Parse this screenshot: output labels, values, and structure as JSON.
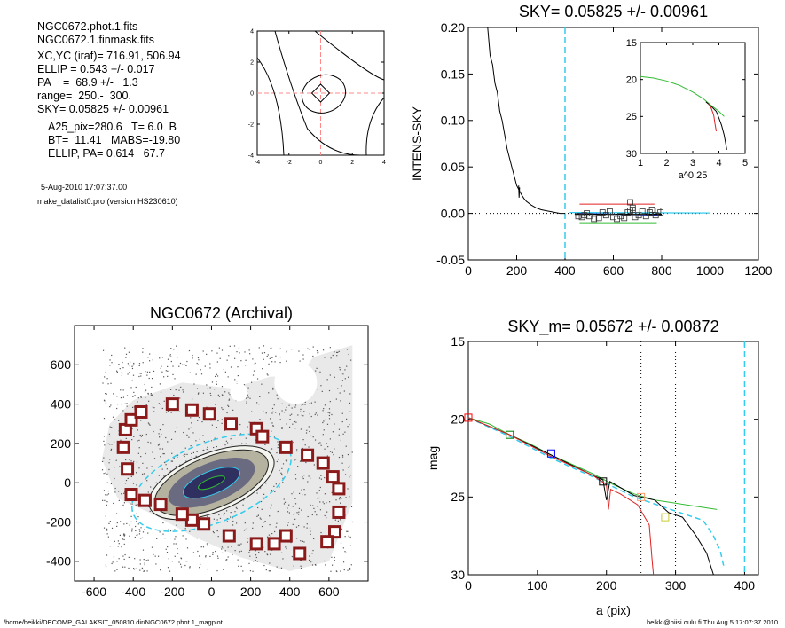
{
  "info": {
    "file1": "NGC0672.phot.1.fits",
    "file2": "NGC0672.1.finmask.fits",
    "xcyc": "XC,YC (iraf)=   716.91, 506.94",
    "ellip": "ELLIP = 0.543 +/- 0.017",
    "pa": "PA    =  68.9 +/-   1.3",
    "range": "range=  250.-  300.",
    "sky": "SKY= 0.05825 +/- 0.00961",
    "a25": "A25_pix=280.6   T= 6.0  B",
    "bt": "BT=  11.41   MABS=-19.80",
    "ellip_pa": "ELLIP, PA= 0.614   67.7",
    "date": "5-Aug-2010 17:07:37.00",
    "program": "make_datalist0.pro (version HS230610)"
  },
  "footer": {
    "path": "/home/heikki/DECOMP_GALAKSIT_050810.dir/NGC0672.phot.1_magplot",
    "user": "heikki@hiisi.oulu.fi  Thu Aug  5 17:07:37 2010"
  },
  "colors": {
    "cyan": "#33ccee",
    "red": "#e02020",
    "green": "#33bb33",
    "blue": "#2233cc",
    "box": "#8b1a1a",
    "pink": "#ff8888"
  },
  "chart_data": [
    {
      "id": "contour",
      "type": "contour",
      "xlim": [
        -4,
        4
      ],
      "ylim": [
        -4,
        4
      ],
      "xticks": [
        "-4",
        "-2",
        "0",
        "2",
        "4"
      ],
      "yticks": [
        "-4",
        "-2",
        "0",
        "2",
        "4"
      ]
    },
    {
      "id": "sky",
      "type": "line",
      "title": "SKY= 0.05825 +/- 0.00961",
      "ylabel": "INTENS-SKY",
      "xlim": [
        0,
        1200
      ],
      "ylim": [
        -0.05,
        0.2
      ],
      "xticks": [
        "0",
        "200",
        "400",
        "600",
        "800",
        "1000",
        "1200"
      ],
      "yticks": [
        "-0.05",
        "0.00",
        "0.05",
        "0.10",
        "0.15",
        "0.20"
      ],
      "vline_x": 400,
      "profile": [
        [
          50,
          0.2
        ],
        [
          80,
          0.2
        ],
        [
          90,
          0.17
        ],
        [
          100,
          0.16
        ],
        [
          110,
          0.14
        ],
        [
          120,
          0.13
        ],
        [
          130,
          0.11
        ],
        [
          140,
          0.1
        ],
        [
          150,
          0.085
        ],
        [
          160,
          0.07
        ],
        [
          170,
          0.06
        ],
        [
          180,
          0.05
        ],
        [
          190,
          0.04
        ],
        [
          200,
          0.03
        ],
        [
          210,
          0.025
        ],
        [
          220,
          0.02
        ],
        [
          230,
          0.016
        ],
        [
          240,
          0.013
        ],
        [
          260,
          0.009
        ],
        [
          280,
          0.006
        ],
        [
          300,
          0.004
        ],
        [
          320,
          0.003
        ],
        [
          340,
          0.002
        ],
        [
          360,
          0.001
        ],
        [
          380,
          0
        ],
        [
          400,
          0
        ]
      ],
      "spike": [
        [
          208,
          0.03
        ],
        [
          210,
          0.017
        ],
        [
          212,
          0.028
        ]
      ],
      "sky_points": [
        [
          455,
          -0.003
        ],
        [
          470,
          -0.004
        ],
        [
          480,
          -0.002
        ],
        [
          490,
          0
        ],
        [
          500,
          -0.003
        ],
        [
          520,
          -0.006
        ],
        [
          540,
          -0.005
        ],
        [
          555,
          0.001
        ],
        [
          570,
          -0.002
        ],
        [
          585,
          0.002
        ],
        [
          600,
          -0.004
        ],
        [
          615,
          -0.006
        ],
        [
          630,
          -0.003
        ],
        [
          645,
          -0.005
        ],
        [
          660,
          0.001
        ],
        [
          670,
          0.003
        ],
        [
          680,
          0.004
        ],
        [
          690,
          -0.004
        ],
        [
          705,
          -0.002
        ],
        [
          720,
          0.002
        ],
        [
          735,
          -0.003
        ],
        [
          750,
          0.001
        ],
        [
          760,
          0.004
        ],
        [
          775,
          -0.002
        ],
        [
          785,
          0.003
        ],
        [
          795,
          0.001
        ],
        [
          670,
          0.012
        ],
        [
          680,
          0.006
        ]
      ],
      "inset": {
        "xlabel": "a^0.25",
        "xlim": [
          1,
          5
        ],
        "ylim": [
          15,
          30
        ],
        "xticks": [
          "1",
          "2",
          "3",
          "4",
          "5"
        ],
        "yticks": [
          "15",
          "20",
          "25",
          "30"
        ],
        "green": [
          [
            1,
            19.6
          ],
          [
            1.5,
            19.8
          ],
          [
            2,
            20.2
          ],
          [
            2.5,
            20.8
          ],
          [
            3,
            21.7
          ],
          [
            3.4,
            22.6
          ],
          [
            3.7,
            23.5
          ],
          [
            4,
            24.3
          ],
          [
            4.2,
            25
          ]
        ],
        "red": [
          [
            3.6,
            23.3
          ],
          [
            3.7,
            23.8
          ],
          [
            3.8,
            24.8
          ],
          [
            3.85,
            26
          ],
          [
            3.9,
            27
          ]
        ],
        "black": [
          [
            3.5,
            23
          ],
          [
            3.7,
            23.6
          ],
          [
            3.9,
            24.3
          ],
          [
            4.0,
            25.2
          ],
          [
            4.1,
            26.2
          ],
          [
            4.2,
            27.5
          ],
          [
            4.25,
            28.5
          ],
          [
            4.3,
            29.5
          ]
        ]
      }
    },
    {
      "id": "image",
      "type": "scatter",
      "title": "NGC0672 (Archival)",
      "xlim": [
        -700,
        800
      ],
      "ylim": [
        -500,
        800
      ],
      "xticks": [
        "-600",
        "-400",
        "-200",
        "0",
        "200",
        "400",
        "600"
      ],
      "yticks": [
        "-400",
        "-200",
        "0",
        "200",
        "400",
        "600"
      ],
      "boxes": [
        [
          -440,
          270
        ],
        [
          -410,
          320
        ],
        [
          -360,
          360
        ],
        [
          -200,
          400
        ],
        [
          -100,
          370
        ],
        [
          -10,
          350
        ],
        [
          100,
          300
        ],
        [
          230,
          275
        ],
        [
          260,
          235
        ],
        [
          380,
          180
        ],
        [
          490,
          140
        ],
        [
          570,
          100
        ],
        [
          620,
          30
        ],
        [
          650,
          -30
        ],
        [
          650,
          -150
        ],
        [
          630,
          -250
        ],
        [
          590,
          -300
        ],
        [
          450,
          -360
        ],
        [
          380,
          -270
        ],
        [
          320,
          -310
        ],
        [
          230,
          -310
        ],
        [
          90,
          -270
        ],
        [
          -40,
          -210
        ],
        [
          -100,
          -190
        ],
        [
          -150,
          -160
        ],
        [
          -260,
          -110
        ],
        [
          -340,
          -90
        ],
        [
          -410,
          -60
        ],
        [
          -430,
          70
        ],
        [
          -450,
          180
        ]
      ]
    },
    {
      "id": "mag",
      "type": "line",
      "title": "SKY_m=  0.05672 +/- 0.00872",
      "xlabel": "a (pix)",
      "ylabel": "mag",
      "xlim": [
        0,
        420
      ],
      "ylim": [
        15,
        30
      ],
      "xticks": [
        "0",
        "100",
        "200",
        "300",
        "400"
      ],
      "yticks": [
        "15",
        "20",
        "25",
        "30"
      ],
      "vlines_dotted": [
        250,
        300
      ],
      "vline_cyan": 400,
      "green": [
        [
          0,
          19.9
        ],
        [
          30,
          20.3
        ],
        [
          60,
          21
        ],
        [
          90,
          21.6
        ],
        [
          120,
          22.3
        ],
        [
          150,
          22.9
        ],
        [
          180,
          23.5
        ],
        [
          210,
          24.2
        ],
        [
          240,
          24.8
        ],
        [
          270,
          25.2
        ],
        [
          300,
          25.4
        ],
        [
          330,
          25.6
        ],
        [
          360,
          25.8
        ]
      ],
      "red": [
        [
          0,
          19.9
        ],
        [
          60,
          21
        ],
        [
          120,
          22.4
        ],
        [
          180,
          23.6
        ],
        [
          200,
          24.2
        ],
        [
          203,
          25.8
        ],
        [
          206,
          24.5
        ],
        [
          220,
          24.8
        ],
        [
          245,
          25.5
        ],
        [
          262,
          26.8
        ],
        [
          266,
          29
        ],
        [
          268,
          30
        ]
      ],
      "black": [
        [
          0,
          19.9
        ],
        [
          60,
          21
        ],
        [
          120,
          22.3
        ],
        [
          180,
          23.6
        ],
        [
          195,
          23.9
        ],
        [
          200,
          25.2
        ],
        [
          205,
          24
        ],
        [
          240,
          24.9
        ],
        [
          270,
          25.2
        ],
        [
          290,
          26
        ],
        [
          310,
          26.3
        ],
        [
          330,
          27.5
        ],
        [
          345,
          28.6
        ],
        [
          355,
          30
        ]
      ],
      "cyan": [
        [
          0,
          19.9
        ],
        [
          60,
          21.1
        ],
        [
          120,
          22.5
        ],
        [
          180,
          23.7
        ],
        [
          240,
          25
        ],
        [
          280,
          25.6
        ],
        [
          320,
          26.2
        ],
        [
          340,
          26.5
        ],
        [
          355,
          27.5
        ],
        [
          365,
          28.5
        ],
        [
          370,
          29.5
        ]
      ],
      "markers": [
        [
          0,
          19.9,
          "red"
        ],
        [
          60,
          21,
          "green"
        ],
        [
          120,
          22.2,
          "blue"
        ],
        [
          195,
          24,
          "black"
        ],
        [
          250,
          25,
          "#ff9966"
        ],
        [
          285,
          26.3,
          "#cccc33"
        ]
      ]
    }
  ]
}
